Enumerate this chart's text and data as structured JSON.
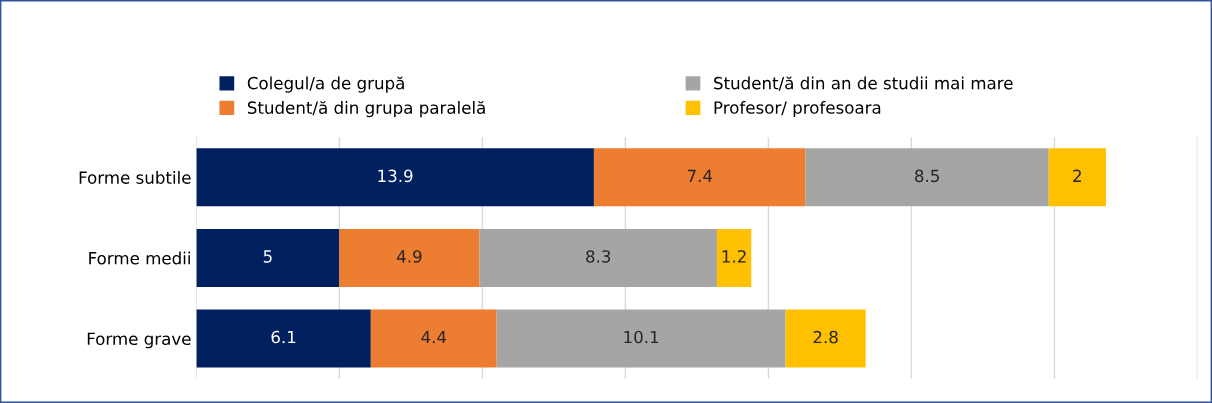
{
  "chart_data": {
    "type": "bar",
    "orientation": "horizontal",
    "stacked": true,
    "categories": [
      "Forme subtile",
      "Forme medii",
      "Forme grave"
    ],
    "series": [
      {
        "name": "Colegul/a de grupă",
        "color": "#002060",
        "values": [
          13.9,
          5,
          6.1
        ]
      },
      {
        "name": "Student/ă din grupa paralelă",
        "color": "#ED7D31",
        "values": [
          7.4,
          4.9,
          4.4
        ]
      },
      {
        "name": "Student/ă din an de studii mai mare",
        "color": "#A5A5A5",
        "values": [
          8.5,
          8.3,
          10.1
        ]
      },
      {
        "name": "Profesor/ profesoara",
        "color": "#FFC000",
        "values": [
          2,
          1.2,
          2.8
        ]
      }
    ],
    "xlim": [
      0,
      35
    ],
    "xticks": [
      {
        "value": 0,
        "label": null
      },
      {
        "value": 5,
        "label": null
      },
      {
        "value": 10,
        "label": null
      },
      {
        "value": 15,
        "label": null
      },
      {
        "value": 20,
        "label": null
      },
      {
        "value": 25,
        "label": null
      },
      {
        "value": 30,
        "label": null
      },
      {
        "value": 35,
        "label": null
      }
    ],
    "grid": "x",
    "legend": "top",
    "data_labels": true,
    "tick_labels": "y"
  }
}
